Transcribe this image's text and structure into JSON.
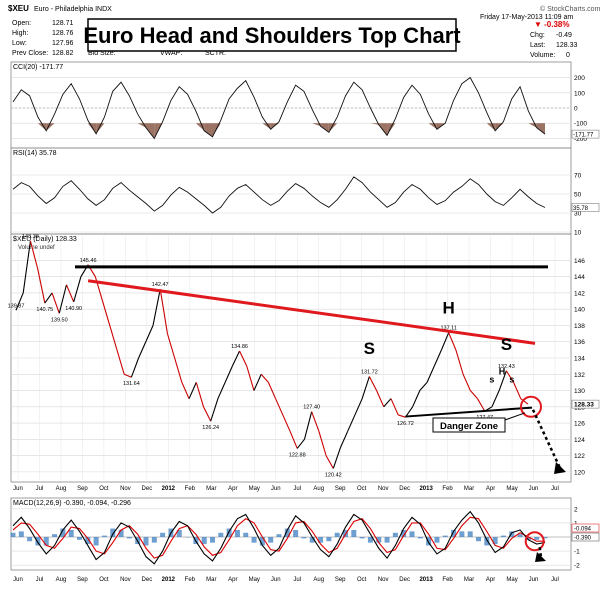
{
  "header": {
    "symbol": "$XEU",
    "name": "Euro - Philadelphia INDX",
    "site": "© StockCharts.com",
    "date_time": "Friday 17-May-2013 11:09 am",
    "open_label": "Open:",
    "open": "128.71",
    "high_label": "High:",
    "high": "128.76",
    "low_label": "Low:",
    "low": "127.96",
    "prev_label": "Prev Close:",
    "prev": "128.82",
    "bid_label": "Bid Size:",
    "vwap_label": "VWAP:",
    "sctr_label": "SCTR:",
    "chg_pct": "▼ -0.38%",
    "chg_label": "Chg:",
    "chg": "-0.49",
    "last_label": "Last:",
    "last": "128.33",
    "volume_label": "Volume:",
    "volume": "0"
  },
  "title": "Euro Head and Shoulders Top Chart",
  "colors": {
    "price_up": "#000000",
    "price_down": "#cc0000",
    "neckline_red": "#e0191e",
    "resistance": "#000000",
    "macd": "#000000",
    "signal": "#dd0000",
    "hist": "#3d7fc1",
    "cci_fill": "#8a5a4a",
    "danger": "#e0191e"
  },
  "chart_data": [
    {
      "type": "line",
      "panel": "CCI",
      "legend": "CCI(20) -171.77",
      "ylim": [
        -250,
        250
      ],
      "y_ticks": [
        200,
        100,
        0,
        -100,
        -200
      ],
      "last_value_label": "-171.77",
      "series": [
        {
          "values": [
            40,
            120,
            80,
            -60,
            -150,
            -40,
            90,
            160,
            60,
            -80,
            -170,
            -60,
            110,
            170,
            80,
            -40,
            -130,
            -200,
            -90,
            50,
            140,
            90,
            -20,
            -150,
            -190,
            -80,
            60,
            130,
            180,
            70,
            -60,
            -140,
            -90,
            40,
            150,
            110,
            -10,
            -120,
            -160,
            -60,
            80,
            170,
            120,
            0,
            -110,
            -180,
            -70,
            70,
            150,
            90,
            -40,
            -140,
            -100,
            50,
            160,
            200,
            100,
            -30,
            -150,
            -90,
            60,
            140,
            -20,
            -130,
            -171.77
          ]
        }
      ]
    },
    {
      "type": "line",
      "panel": "RSI",
      "legend": "RSI(14) 35.78",
      "ylim": [
        10,
        90
      ],
      "y_ticks": [
        70,
        50,
        30,
        10
      ],
      "last_value_label": "35.78",
      "series": [
        {
          "values": [
            55,
            62,
            58,
            48,
            40,
            46,
            58,
            64,
            55,
            45,
            38,
            44,
            56,
            62,
            54,
            47,
            40,
            32,
            38,
            49,
            57,
            52,
            45,
            38,
            30,
            36,
            48,
            56,
            60,
            52,
            44,
            38,
            43,
            53,
            61,
            56,
            48,
            41,
            36,
            44,
            55,
            68,
            62,
            52,
            44,
            36,
            41,
            52,
            60,
            55,
            46,
            39,
            43,
            52,
            58,
            66,
            60,
            50,
            42,
            38,
            46,
            55,
            47,
            40,
            35.78
          ]
        }
      ]
    },
    {
      "type": "line",
      "panel": "price",
      "legend": "$XEU (Daily) 128.33",
      "sublegend": "Volume undef",
      "ylim": [
        119,
        149
      ],
      "y_ticks": [
        146,
        144,
        142,
        140,
        138,
        136,
        134,
        132,
        130,
        128,
        126,
        124,
        122,
        120
      ],
      "last_value_label": "128.33",
      "x_labels": [
        "Jun",
        "Jul",
        "Aug",
        "Sep",
        "Oct",
        "Nov",
        "Dec",
        "2012",
        "Feb",
        "Mar",
        "Apr",
        "May",
        "Jun",
        "Jul",
        "Aug",
        "Sep",
        "Oct",
        "Nov",
        "Dec",
        "2013",
        "Feb",
        "Mar",
        "Apr",
        "May",
        "Jun",
        "Jul"
      ],
      "series": [
        {
          "name": "XEU",
          "values": [
            139.87,
            142,
            148.38,
            145,
            140.75,
            142,
            139.5,
            143,
            140.9,
            144,
            145.46,
            144,
            141,
            138,
            135,
            132,
            131.64,
            134,
            136,
            138,
            142.47,
            137,
            134,
            131,
            129,
            131,
            128,
            126.24,
            129,
            131,
            133,
            134.86,
            133,
            130,
            132,
            131,
            129,
            127,
            125,
            122.88,
            124,
            127.4,
            125,
            122,
            120.42,
            123,
            125,
            127,
            129,
            131.72,
            130,
            128,
            129,
            127,
            126.72,
            128,
            130,
            131,
            133,
            135,
            137.11,
            135,
            132,
            130,
            129,
            127.47,
            128,
            130,
            132.43,
            131,
            129,
            128.33
          ]
        }
      ],
      "point_labels": [
        {
          "x": 0,
          "y": 139.87,
          "text": "139.87"
        },
        {
          "x": 2,
          "y": 148.38,
          "text": "148.38"
        },
        {
          "x": 4,
          "y": 140.75,
          "text": "140.75"
        },
        {
          "x": 6,
          "y": 139.5,
          "text": "139.50"
        },
        {
          "x": 8,
          "y": 140.9,
          "text": "140.90"
        },
        {
          "x": 10,
          "y": 145.46,
          "text": "145.46"
        },
        {
          "x": 16,
          "y": 131.64,
          "text": "131.64"
        },
        {
          "x": 20,
          "y": 142.47,
          "text": "142.47"
        },
        {
          "x": 27,
          "y": 126.24,
          "text": "126.24"
        },
        {
          "x": 31,
          "y": 134.86,
          "text": "134.86"
        },
        {
          "x": 39,
          "y": 122.88,
          "text": "122.88"
        },
        {
          "x": 41,
          "y": 127.4,
          "text": "127.40"
        },
        {
          "x": 44,
          "y": 120.42,
          "text": "120.42"
        },
        {
          "x": 49,
          "y": 131.72,
          "text": "131.72"
        },
        {
          "x": 54,
          "y": 126.72,
          "text": "126.72"
        },
        {
          "x": 60,
          "y": 137.11,
          "text": "137.11"
        },
        {
          "x": 65,
          "y": 127.47,
          "text": "127.47"
        },
        {
          "x": 68,
          "y": 132.43,
          "text": "132.43"
        }
      ],
      "annotations": {
        "left_shoulder": "S",
        "head": "H",
        "right_shoulder": "S",
        "small_s": [
          "s",
          "H",
          "s"
        ],
        "danger_zone": "Danger Zone",
        "resistance_level": 145.2,
        "neckline_red": {
          "x1": 10,
          "y1": 143.5,
          "x2": 71,
          "y2": 135.8
        },
        "neckline_black": {
          "x1": 54,
          "y1": 126.8,
          "x2": 71,
          "y2": 127.9
        }
      }
    },
    {
      "type": "line",
      "panel": "MACD",
      "legend": "MACD(12,26,9) -0.390, -0.094, -0.296",
      "ylim": [
        -2.2,
        2.2
      ],
      "y_ticks": [
        2,
        1,
        0,
        -1,
        -2
      ],
      "last_value_labels": [
        "-0.094",
        "-0.390"
      ],
      "x_labels": [
        "Jun",
        "Jul",
        "Aug",
        "Sep",
        "Oct",
        "Nov",
        "Dec",
        "2012",
        "Feb",
        "Mar",
        "Apr",
        "May",
        "Jun",
        "Jul",
        "Aug",
        "Sep",
        "Oct",
        "Nov",
        "Dec",
        "2013",
        "Feb",
        "Mar",
        "Apr",
        "May",
        "Jun",
        "Jul"
      ],
      "series": [
        {
          "name": "MACD",
          "values": [
            0.8,
            1.4,
            0.6,
            -0.4,
            -1.2,
            -0.6,
            0.5,
            1.2,
            0.4,
            -0.6,
            -1.6,
            -1.1,
            0.2,
            1.0,
            0.7,
            -0.3,
            -1.4,
            -1.9,
            -1.0,
            0.3,
            1.1,
            0.8,
            -0.3,
            -1.2,
            -1.7,
            -0.8,
            0.4,
            1.3,
            1.6,
            0.6,
            -0.6,
            -1.3,
            -0.8,
            0.5,
            1.5,
            1.0,
            0.0,
            -0.9,
            -1.4,
            -0.5,
            0.7,
            1.6,
            1.2,
            0.2,
            -0.8,
            -1.5,
            -0.6,
            0.6,
            1.4,
            0.9,
            -0.4,
            -1.2,
            -0.8,
            0.4,
            1.2,
            1.8,
            1.0,
            -0.2,
            -1.1,
            -0.7,
            0.3,
            0.5,
            -0.2,
            -0.5,
            -0.39
          ]
        },
        {
          "name": "Signal",
          "values": [
            0.5,
            1.0,
            0.9,
            0.2,
            -0.6,
            -0.8,
            -0.1,
            0.7,
            0.6,
            -0.1,
            -1.0,
            -1.2,
            -0.4,
            0.5,
            0.8,
            0.2,
            -0.8,
            -1.5,
            -1.3,
            -0.3,
            0.6,
            0.8,
            0.2,
            -0.7,
            -1.3,
            -1.1,
            -0.2,
            0.8,
            1.3,
            1.0,
            0.0,
            -0.9,
            -1.0,
            -0.1,
            1.0,
            1.1,
            0.4,
            -0.5,
            -1.1,
            -0.8,
            0.2,
            1.1,
            1.3,
            0.6,
            -0.4,
            -1.1,
            -0.9,
            0.1,
            1.0,
            1.0,
            0.2,
            -0.8,
            -0.9,
            -0.1,
            0.8,
            1.4,
            1.3,
            0.4,
            -0.6,
            -0.8,
            -0.1,
            0.3,
            0.0,
            -0.3,
            -0.296
          ]
        }
      ]
    }
  ]
}
